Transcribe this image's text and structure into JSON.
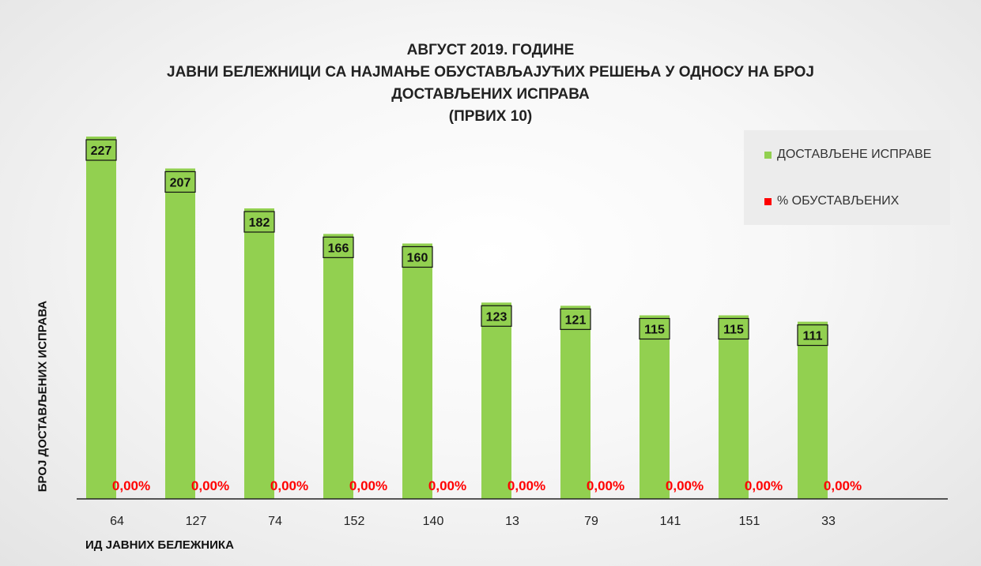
{
  "chart_data": {
    "type": "bar",
    "title_lines": [
      "АВГУСТ 2019. ГОДИНЕ",
      "ЈАВНИ БЕЛЕЖНИЦИ СА НАЈМАЊЕ ОБУСТАВЉАЈУЋИХ РЕШЕЊА У ОДНОСУ НА БРОЈ",
      "ДОСТАВЉЕНИХ ИСПРАВА",
      "(ПРВИХ 10)"
    ],
    "xlabel": "ИД ЈАВНИХ БЕЛЕЖНИКА",
    "ylabel": "БРОЈ ДОСТАВЉЕНИХ ИСПРАВА",
    "categories": [
      "64",
      "127",
      "74",
      "152",
      "140",
      "13",
      "79",
      "141",
      "151",
      "33"
    ],
    "series": [
      {
        "name": "ДОСТАВЉЕНЕ ИСПРАВЕ",
        "color": "#92d050",
        "values": [
          227,
          207,
          182,
          166,
          160,
          123,
          121,
          115,
          115,
          111
        ]
      },
      {
        "name": "% ОБУСТАВЉЕНИХ",
        "color": "#ff0000",
        "values": [
          0,
          0,
          0,
          0,
          0,
          0,
          0,
          0,
          0,
          0
        ],
        "labels": [
          "0,00%",
          "0,00%",
          "0,00%",
          "0,00%",
          "0,00%",
          "0,00%",
          "0,00%",
          "0,00%",
          "0,00%",
          "0,00%"
        ]
      }
    ],
    "ylim": [
      0,
      227
    ],
    "grid": false,
    "legend_position": "top-right",
    "bar_labels_shown": true
  }
}
